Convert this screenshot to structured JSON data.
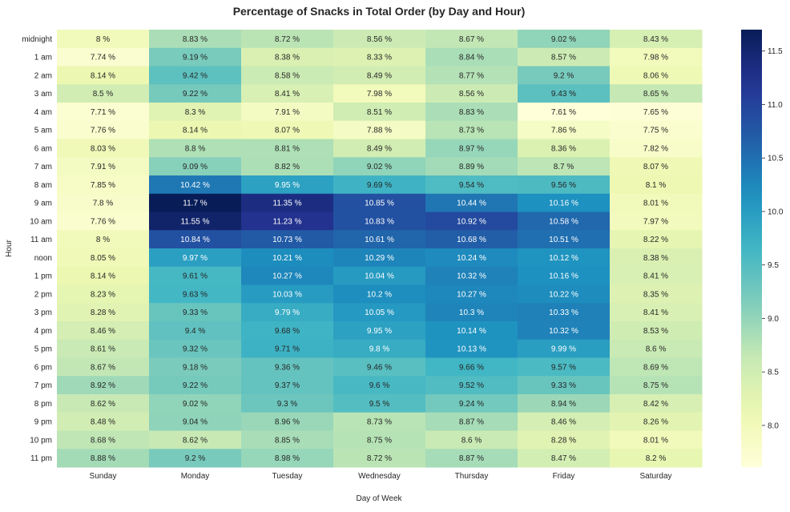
{
  "chart_data": {
    "type": "heatmap",
    "title": "Percentage of Snacks in Total Order (by Day and Hour)",
    "xlabel": "Day of Week",
    "ylabel": "Hour",
    "x": [
      "Sunday",
      "Monday",
      "Tuesday",
      "Wednesday",
      "Thursday",
      "Friday",
      "Saturday"
    ],
    "y": [
      "midnight",
      "1 am",
      "2 am",
      "3 am",
      "4 am",
      "5 am",
      "6 am",
      "7 am",
      "8 am",
      "9 am",
      "10 am",
      "11 am",
      "noon",
      "1 pm",
      "2 pm",
      "3 pm",
      "4 pm",
      "5 pm",
      "6 pm",
      "7 pm",
      "8 pm",
      "9 pm",
      "10 pm",
      "11 pm"
    ],
    "values": [
      [
        8,
        8.83,
        8.72,
        8.56,
        8.67,
        9.02,
        8.43
      ],
      [
        7.74,
        9.19,
        8.38,
        8.33,
        8.84,
        8.57,
        7.98
      ],
      [
        8.14,
        9.42,
        8.58,
        8.49,
        8.77,
        9.2,
        8.06
      ],
      [
        8.5,
        9.22,
        8.41,
        7.98,
        8.56,
        9.43,
        8.65
      ],
      [
        7.71,
        8.3,
        7.91,
        8.51,
        8.83,
        7.61,
        7.65
      ],
      [
        7.76,
        8.14,
        8.07,
        7.88,
        8.73,
        7.86,
        7.75
      ],
      [
        8.03,
        8.8,
        8.81,
        8.49,
        8.97,
        8.36,
        7.82
      ],
      [
        7.91,
        9.09,
        8.82,
        9.02,
        8.89,
        8.7,
        8.07
      ],
      [
        7.85,
        10.42,
        9.95,
        9.69,
        9.54,
        9.56,
        8.1
      ],
      [
        7.8,
        11.7,
        11.35,
        10.85,
        10.44,
        10.16,
        8.01
      ],
      [
        7.76,
        11.55,
        11.23,
        10.83,
        10.92,
        10.58,
        7.97
      ],
      [
        8,
        10.84,
        10.73,
        10.61,
        10.68,
        10.51,
        8.22
      ],
      [
        8.05,
        9.97,
        10.21,
        10.29,
        10.24,
        10.12,
        8.38
      ],
      [
        8.14,
        9.61,
        10.27,
        10.04,
        10.32,
        10.16,
        8.41
      ],
      [
        8.23,
        9.63,
        10.03,
        10.2,
        10.27,
        10.22,
        8.35
      ],
      [
        8.28,
        9.33,
        9.79,
        10.05,
        10.3,
        10.33,
        8.41
      ],
      [
        8.46,
        9.4,
        9.68,
        9.95,
        10.14,
        10.32,
        8.53
      ],
      [
        8.61,
        9.32,
        9.71,
        9.8,
        10.13,
        9.99,
        8.6
      ],
      [
        8.67,
        9.18,
        9.36,
        9.46,
        9.66,
        9.57,
        8.69
      ],
      [
        8.92,
        9.22,
        9.37,
        9.6,
        9.52,
        9.33,
        8.75
      ],
      [
        8.62,
        9.02,
        9.3,
        9.5,
        9.24,
        8.94,
        8.42
      ],
      [
        8.48,
        9.04,
        8.96,
        8.73,
        8.87,
        8.46,
        8.26
      ],
      [
        8.68,
        8.62,
        8.85,
        8.75,
        8.6,
        8.28,
        8.01
      ],
      [
        8.88,
        9.2,
        8.98,
        8.72,
        8.87,
        8.47,
        8.2
      ]
    ],
    "value_suffix": " %",
    "colormap": "YlGnBu",
    "vmin": 7.61,
    "vmax": 11.7,
    "colorbar_ticks": [
      "8.0",
      "8.5",
      "9.0",
      "9.5",
      "10.0",
      "10.5",
      "11.0",
      "11.5"
    ],
    "grid": false,
    "colorbar_position": "right"
  }
}
